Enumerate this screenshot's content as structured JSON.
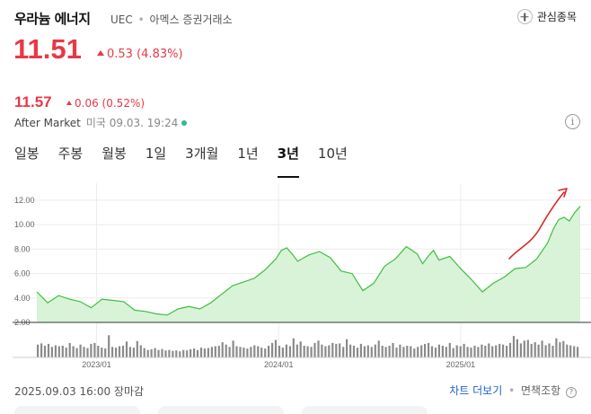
{
  "header": {
    "name": "우라늄 에너지",
    "ticker": "UEC",
    "separator": "•",
    "exchange": "아멕스 증권거래소",
    "fav_label": "관심종목"
  },
  "price": {
    "current": "11.51",
    "change": "0.53",
    "change_pct": "(4.83%)"
  },
  "after_market": {
    "price": "11.57",
    "change": "0.06",
    "change_pct": "(0.52%)",
    "label": "After Market",
    "region_time": "미국 09.03. 19:24",
    "info_icon": "i"
  },
  "tabs": [
    {
      "label": "일봉",
      "active": false
    },
    {
      "label": "주봉",
      "active": false
    },
    {
      "label": "월봉",
      "active": false
    },
    {
      "label": "1일",
      "active": false
    },
    {
      "label": "3개월",
      "active": false
    },
    {
      "label": "1년",
      "active": false
    },
    {
      "label": "3년",
      "active": true
    },
    {
      "label": "10년",
      "active": false
    }
  ],
  "colors": {
    "up": "#e63946",
    "line": "#3fbf3f",
    "area": "#d8f3d8",
    "volume": "#8a8a8a",
    "link": "#1e64c8",
    "arrow": "#d62828"
  },
  "chart_data": {
    "type": "area",
    "y_ticks": [
      "12.00",
      "10.00",
      "8.00",
      "6.00",
      "4.00",
      "2.00"
    ],
    "ylim": [
      2,
      12.8
    ],
    "x_ticks": [
      {
        "label": "2023/01",
        "t": 0.11
      },
      {
        "label": "2024/01",
        "t": 0.445
      },
      {
        "label": "2025/01",
        "t": 0.78
      }
    ],
    "series": [
      {
        "t": [
          0.0,
          0.02,
          0.04,
          0.06,
          0.08,
          0.1,
          0.12,
          0.14,
          0.16,
          0.18,
          0.2,
          0.22,
          0.24,
          0.26,
          0.28,
          0.3,
          0.32,
          0.34,
          0.36,
          0.38,
          0.4,
          0.42,
          0.44,
          0.45,
          0.46,
          0.47,
          0.48,
          0.5,
          0.52,
          0.54,
          0.56,
          0.58,
          0.6,
          0.62,
          0.64,
          0.66,
          0.68,
          0.7,
          0.71,
          0.72,
          0.73,
          0.74,
          0.76,
          0.78,
          0.8,
          0.82,
          0.84,
          0.86,
          0.88,
          0.9,
          0.92,
          0.94,
          0.95,
          0.96,
          0.97,
          0.98,
          0.99,
          1.0
        ],
        "values": [
          4.5,
          3.6,
          4.2,
          3.9,
          3.7,
          3.2,
          3.9,
          3.8,
          3.7,
          3.0,
          2.9,
          2.7,
          2.6,
          3.1,
          3.3,
          3.1,
          3.6,
          4.3,
          5.0,
          5.3,
          5.6,
          6.3,
          7.2,
          7.9,
          8.1,
          7.6,
          7.0,
          7.5,
          7.8,
          7.3,
          6.2,
          6.0,
          4.6,
          5.2,
          6.6,
          7.2,
          8.2,
          7.6,
          6.8,
          7.4,
          7.9,
          7.1,
          7.4,
          6.4,
          5.5,
          4.5,
          5.2,
          5.7,
          6.4,
          6.5,
          7.2,
          8.5,
          9.6,
          10.4,
          10.6,
          10.3,
          11.0,
          11.5
        ]
      }
    ],
    "volume": [
      0.55,
      0.6,
      0.5,
      0.58,
      0.45,
      0.52,
      0.48,
      0.5,
      0.42,
      0.62,
      0.48,
      0.4,
      0.55,
      0.45,
      0.4,
      0.58,
      0.62,
      0.5,
      0.42,
      0.38,
      0.95,
      0.45,
      0.42,
      0.48,
      0.5,
      0.68,
      0.45,
      0.42,
      0.7,
      0.52,
      0.4,
      0.32,
      0.35,
      0.4,
      0.32,
      0.36,
      0.3,
      0.32,
      0.28,
      0.3,
      0.26,
      0.32,
      0.3,
      0.35,
      0.38,
      0.32,
      0.42,
      0.38,
      0.4,
      0.45,
      0.48,
      0.5,
      0.65,
      0.55,
      0.45,
      0.72,
      0.48,
      0.45,
      0.42,
      0.38,
      0.45,
      0.52,
      0.48,
      0.42,
      0.38,
      0.5,
      0.62,
      0.75,
      0.5,
      0.42,
      0.55,
      0.48,
      0.82,
      0.55,
      0.68,
      0.5,
      0.48,
      0.45,
      0.62,
      0.72,
      0.55,
      0.48,
      0.52,
      0.62,
      0.58,
      0.6,
      0.45,
      0.78,
      0.55,
      0.5,
      0.42,
      0.58,
      0.48,
      0.52,
      0.45,
      0.55,
      0.72,
      0.5,
      0.45,
      0.5,
      0.62,
      0.42,
      0.55,
      0.45,
      0.5,
      0.48,
      0.38,
      0.45,
      0.52,
      0.58,
      0.62,
      0.48,
      0.42,
      0.55,
      0.5,
      0.45,
      0.62,
      0.4,
      0.52,
      0.48,
      0.58,
      0.45,
      0.42,
      0.5,
      0.45,
      0.55,
      0.5,
      0.6,
      0.48,
      0.52,
      0.58,
      0.55,
      0.5,
      0.62,
      0.92,
      0.78,
      0.6,
      0.72,
      0.75,
      0.58,
      0.65,
      0.55,
      0.72,
      0.52,
      0.6,
      0.5,
      0.82,
      0.65,
      0.7,
      0.55,
      0.52,
      0.48,
      0.45
    ]
  },
  "footer": {
    "timestamp": "2025.09.03 16:00 장마감",
    "chart_link": "차트 더보기",
    "sep": "•",
    "disclaimer": "면책조항",
    "disclaimer_icon": "?"
  }
}
